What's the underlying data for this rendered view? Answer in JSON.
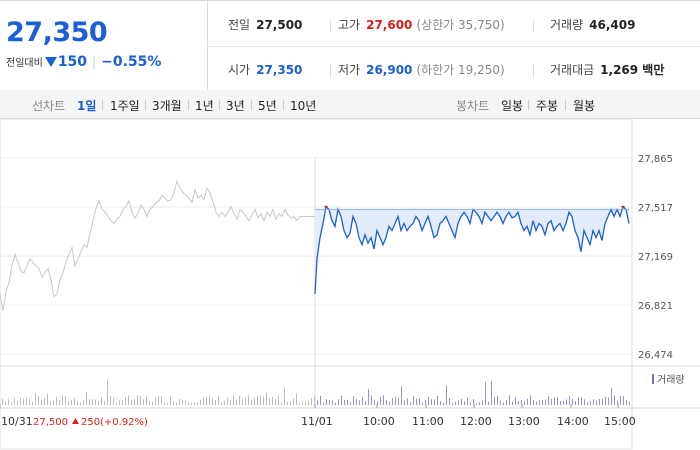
{
  "header": {
    "price": "27,350",
    "change_label": "전일대비",
    "change_amount": "150",
    "change_pct": "−0.55%",
    "prev": {
      "label": "전일",
      "value": "27,500"
    },
    "high": {
      "label": "고가",
      "value": "27,600",
      "limit": "(상한가 35,750)"
    },
    "volume": {
      "label": "거래량",
      "value": "46,409"
    },
    "open": {
      "label": "시가",
      "value": "27,350"
    },
    "low": {
      "label": "저가",
      "value": "26,900",
      "limit": "(하한가 19,250)"
    },
    "turnover": {
      "label": "거래대금",
      "value": "1,269 백만"
    }
  },
  "toolbar": {
    "line_label": "선차트",
    "line_options": [
      "1일",
      "1주일",
      "3개월",
      "1년",
      "3년",
      "5년",
      "10년"
    ],
    "selected_line": "1일",
    "candle_label": "봉차트",
    "candle_options": [
      "일봉",
      "주봉",
      "월봉"
    ]
  },
  "colors": {
    "up": "#d6201c",
    "down": "#1a5fd6",
    "prev_line": "#c8c8c8",
    "fill": "#e3ecf9"
  },
  "chart_data": {
    "type": "line",
    "y_ticks": [
      "27,865",
      "27,517",
      "27,169",
      "26,821",
      "26,474"
    ],
    "y_tick_values": [
      27865,
      27517,
      27169,
      26821,
      26474
    ],
    "ylim": [
      26474,
      27865
    ],
    "x_labels": [
      "10/31",
      "11/01",
      "10:00",
      "11:00",
      "12:00",
      "13:00",
      "14:00",
      "15:00"
    ],
    "reference_price": 27500,
    "prev_day_note": {
      "date": "10/31",
      "close": "27,500",
      "change": "250",
      "pct": "(+0.92%)"
    },
    "volume_legend": "거래량",
    "series": [
      {
        "x": [
          0,
          3,
          6,
          9,
          12,
          15,
          18,
          21,
          24,
          27,
          30,
          33,
          36,
          39,
          42,
          45,
          48,
          51,
          54,
          57,
          60,
          63,
          66,
          69,
          72,
          75,
          78,
          81,
          84,
          87,
          90,
          93,
          96,
          99,
          102,
          105,
          108,
          111,
          114,
          117,
          120,
          123,
          126,
          129,
          132,
          135,
          138,
          141,
          144,
          147,
          150,
          153,
          156,
          159,
          162,
          165,
          168,
          171,
          174,
          177,
          180,
          183,
          186,
          189,
          192,
          195,
          198,
          201,
          204,
          207,
          210,
          213,
          216,
          219,
          222,
          225,
          228,
          231,
          234,
          237,
          240,
          243,
          246,
          249,
          252,
          255,
          258,
          261,
          264,
          267,
          270,
          273,
          276,
          279,
          282,
          285,
          288,
          291,
          294,
          297,
          300,
          303,
          306,
          309,
          312,
          315
        ],
        "values": [
          26900,
          26780,
          26920,
          26980,
          27100,
          27180,
          27120,
          27060,
          27050,
          27100,
          27150,
          27120,
          27100,
          27080,
          27020,
          27050,
          27080,
          27000,
          26880,
          26900,
          27000,
          27050,
          27130,
          27180,
          27230,
          27100,
          27150,
          27200,
          27250,
          27230,
          27330,
          27420,
          27510,
          27560,
          27500,
          27480,
          27450,
          27420,
          27400,
          27430,
          27450,
          27500,
          27520,
          27560,
          27480,
          27440,
          27470,
          27530,
          27500,
          27450,
          27500,
          27520,
          27550,
          27560,
          27600,
          27580,
          27560,
          27570,
          27620,
          27700,
          27650,
          27620,
          27600,
          27580,
          27550,
          27640,
          27580,
          27600,
          27570,
          27650,
          27620,
          27550,
          27480,
          27450,
          27480,
          27450,
          27480,
          27520,
          27470,
          27430,
          27500,
          27480,
          27450,
          27420,
          27460,
          27500,
          27440,
          27470,
          27420,
          27480,
          27450,
          27500,
          27430,
          27470,
          27450,
          27500,
          27460,
          27440,
          27450,
          27420,
          27450,
          27450,
          27450,
          27450,
          27450,
          27450
        ]
      },
      {
        "x": [
          315,
          317,
          320,
          323,
          326,
          329,
          332,
          335,
          338,
          341,
          344,
          347,
          350,
          353,
          356,
          359,
          362,
          365,
          368,
          371,
          374,
          377,
          380,
          383,
          386,
          389,
          392,
          395,
          398,
          401,
          404,
          407,
          410,
          413,
          416,
          419,
          422,
          425,
          428,
          431,
          434,
          437,
          440,
          443,
          446,
          449,
          452,
          455,
          458,
          461,
          464,
          467,
          470,
          473,
          476,
          479,
          482,
          485,
          488,
          491,
          494,
          497,
          500,
          503,
          506,
          509,
          512,
          515,
          518,
          521,
          524,
          527,
          530,
          533,
          536,
          539,
          542,
          545,
          548,
          551,
          554,
          557,
          560,
          563,
          566,
          569,
          572,
          575,
          578,
          581,
          584,
          587,
          590,
          593,
          596,
          599,
          602,
          605,
          608,
          611,
          614,
          617,
          620,
          623,
          626,
          629
        ],
        "values": [
          26900,
          27150,
          27300,
          27400,
          27520,
          27500,
          27420,
          27380,
          27500,
          27450,
          27350,
          27300,
          27330,
          27450,
          27400,
          27300,
          27250,
          27320,
          27260,
          27300,
          27220,
          27350,
          27300,
          27250,
          27300,
          27380,
          27350,
          27400,
          27450,
          27350,
          27400,
          27350,
          27380,
          27400,
          27450,
          27420,
          27350,
          27400,
          27450,
          27380,
          27300,
          27320,
          27400,
          27420,
          27450,
          27400,
          27350,
          27300,
          27400,
          27450,
          27480,
          27450,
          27400,
          27500,
          27480,
          27450,
          27400,
          27480,
          27450,
          27420,
          27450,
          27480,
          27450,
          27400,
          27450,
          27480,
          27440,
          27450,
          27480,
          27400,
          27350,
          27380,
          27320,
          27420,
          27350,
          27400,
          27380,
          27320,
          27400,
          27420,
          27350,
          27380,
          27400,
          27350,
          27400,
          27480,
          27450,
          27350,
          27300,
          27200,
          27350,
          27300,
          27250,
          27350,
          27300,
          27350,
          27280,
          27400,
          27450,
          27500,
          27450,
          27500,
          27450,
          27520,
          27500,
          27400
        ]
      }
    ]
  }
}
